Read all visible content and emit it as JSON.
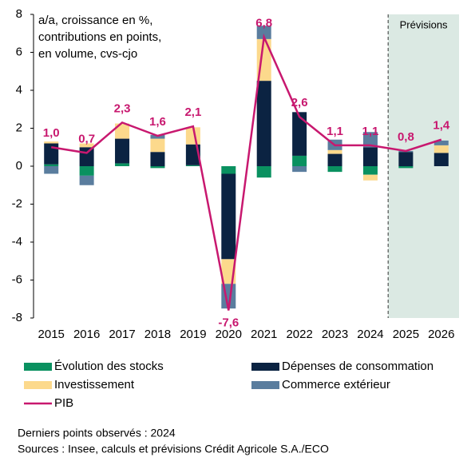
{
  "chart_data": {
    "type": "bar",
    "annotation": [
      "a/a, croissance en %,",
      "contributions en points,",
      "en volume, cvs-cjo"
    ],
    "forecast": {
      "label": "Prévisions",
      "start": "2025",
      "color": "#dbe9e3"
    },
    "categories": [
      "2015",
      "2016",
      "2017",
      "2018",
      "2019",
      "2020",
      "2021",
      "2022",
      "2023",
      "2024",
      "2025",
      "2026"
    ],
    "series": [
      {
        "name": "Évolution des stocks",
        "type": "bar",
        "color": "#0a9160",
        "values": [
          0.1,
          -0.5,
          0.15,
          -0.1,
          0.05,
          -0.4,
          -0.6,
          0.55,
          -0.3,
          -0.45,
          -0.1,
          0
        ]
      },
      {
        "name": "Dépenses de consommation",
        "type": "bar",
        "color": "#0b2342",
        "values": [
          1.1,
          1.0,
          1.3,
          0.75,
          1.1,
          -4.5,
          4.5,
          2.3,
          0.65,
          1.0,
          0.75,
          0.7
        ]
      },
      {
        "name": "Investissement",
        "type": "bar",
        "color": "#fcd98c",
        "values": [
          0.1,
          0.2,
          0.8,
          0.7,
          0.9,
          -1.3,
          2.2,
          0,
          0.2,
          -0.3,
          0,
          0.4
        ]
      },
      {
        "name": "Commerce extérieur",
        "type": "bar",
        "color": "#5a7d9e",
        "values": [
          -0.4,
          -0.5,
          0,
          0.2,
          0,
          -1.3,
          0.7,
          -0.3,
          0.55,
          0.8,
          0.05,
          0.25
        ]
      },
      {
        "name": "PIB",
        "type": "line",
        "color": "#c8186f",
        "values": [
          1.0,
          0.7,
          2.3,
          1.6,
          2.1,
          -7.6,
          6.8,
          2.6,
          1.1,
          1.1,
          0.8,
          1.4
        ],
        "value_labels": [
          "1,0",
          "0,7",
          "2,3",
          "1,6",
          "2,1",
          "-7,6",
          "6,8",
          "2,6",
          "1,1",
          "1,1",
          "0,8",
          "1,4"
        ]
      }
    ],
    "ylim": [
      -8,
      8
    ],
    "yticks": [
      -8,
      -6,
      -4,
      -2,
      0,
      2,
      4,
      6,
      8
    ],
    "notes": [
      "Derniers points observés : 2024",
      "Sources : Insee, calculs et prévisions Crédit Agricole S.A./ECO"
    ]
  }
}
